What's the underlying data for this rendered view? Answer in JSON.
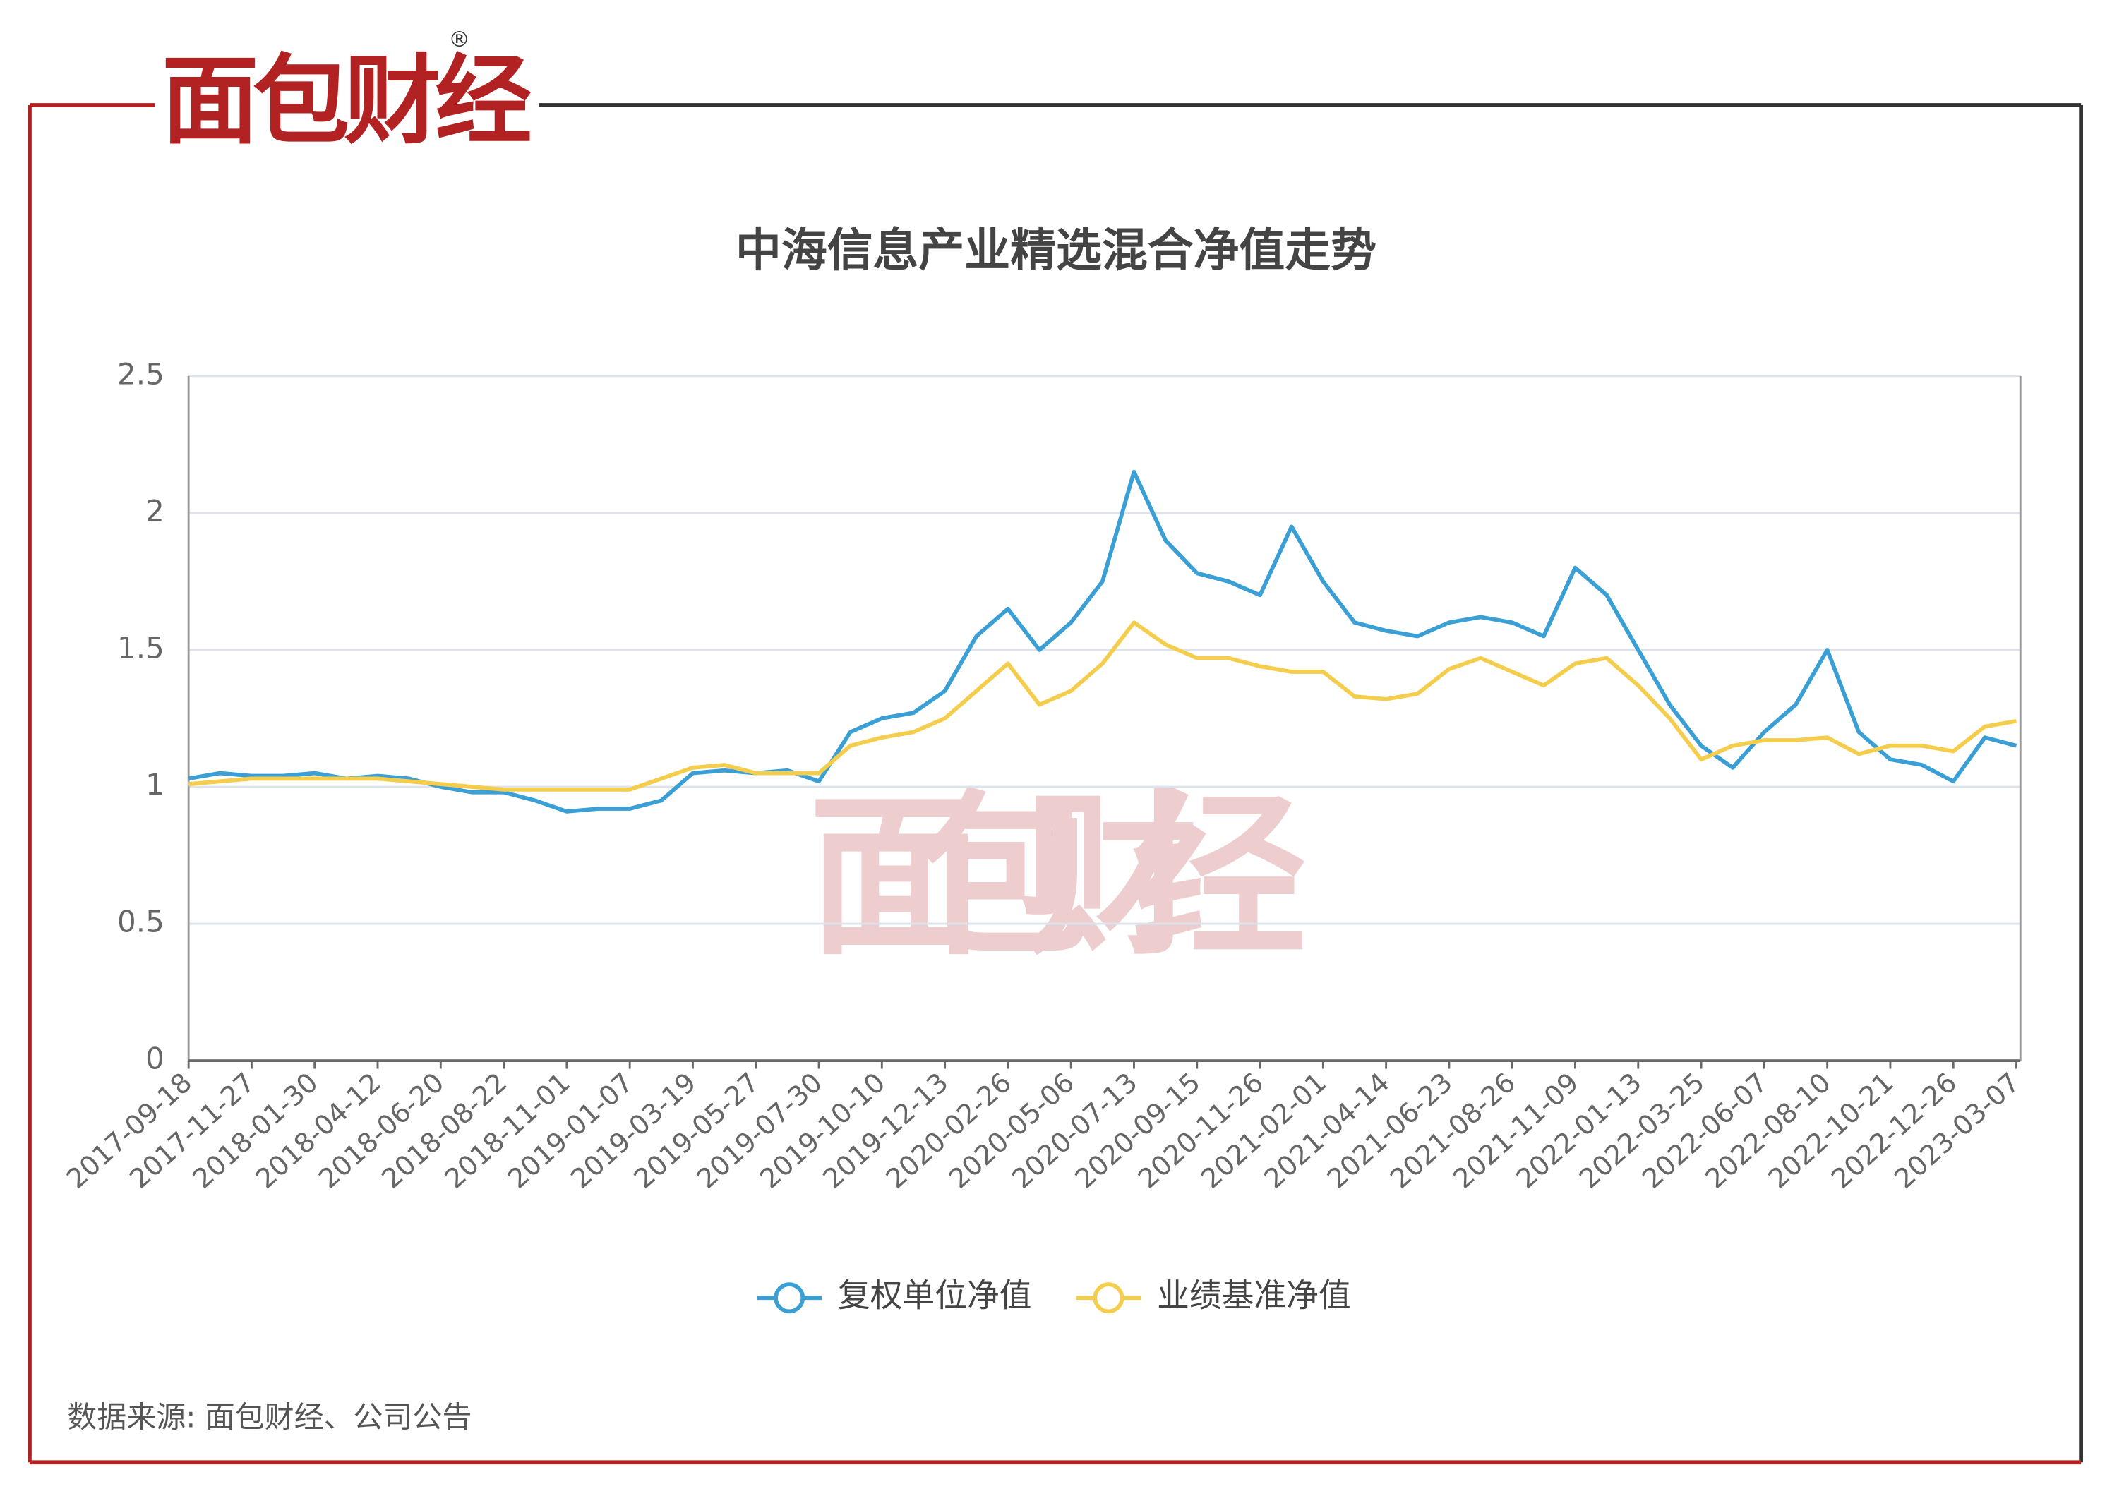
{
  "brand": {
    "name": "面包财经",
    "mark": "®"
  },
  "chart_data": {
    "type": "line",
    "title": "中海信息产业精选混合净值走势",
    "categories": [
      "2017-09-18",
      null,
      "2017-11-27",
      null,
      "2018-01-30",
      null,
      "2018-04-12",
      null,
      "2018-06-20",
      null,
      "2018-08-22",
      null,
      "2018-11-01",
      null,
      "2019-01-07",
      null,
      "2019-03-19",
      null,
      "2019-05-27",
      null,
      "2019-07-30",
      null,
      "2019-10-10",
      null,
      "2019-12-13",
      null,
      "2020-02-26",
      null,
      "2020-05-06",
      null,
      "2020-07-13",
      null,
      "2020-09-15",
      null,
      "2020-11-26",
      null,
      "2021-02-01",
      null,
      "2021-04-14",
      null,
      "2021-06-23",
      null,
      "2021-08-26",
      null,
      "2021-11-09",
      null,
      "2022-01-13",
      null,
      "2022-03-25",
      null,
      "2022-06-07",
      null,
      "2022-08-10",
      null,
      "2022-10-21",
      null,
      "2022-12-26",
      null,
      "2023-03-07"
    ],
    "series": [
      {
        "name": "复权单位净值",
        "color": "#3a9fd4",
        "values": [
          1.03,
          1.05,
          1.04,
          1.04,
          1.05,
          1.03,
          1.04,
          1.03,
          1.0,
          0.98,
          0.98,
          0.95,
          0.91,
          0.92,
          0.92,
          0.95,
          1.05,
          1.06,
          1.05,
          1.06,
          1.02,
          1.2,
          1.25,
          1.27,
          1.35,
          1.55,
          1.65,
          1.5,
          1.6,
          1.75,
          2.15,
          1.9,
          1.78,
          1.75,
          1.7,
          1.95,
          1.75,
          1.6,
          1.57,
          1.55,
          1.6,
          1.62,
          1.6,
          1.55,
          1.8,
          1.7,
          1.5,
          1.3,
          1.15,
          1.07,
          1.2,
          1.3,
          1.5,
          1.2,
          1.1,
          1.08,
          1.02,
          1.18,
          1.15
        ]
      },
      {
        "name": "业绩基准净值",
        "color": "#f5cd4c",
        "values": [
          1.01,
          1.02,
          1.03,
          1.03,
          1.03,
          1.03,
          1.03,
          1.02,
          1.01,
          1.0,
          0.99,
          0.99,
          0.99,
          0.99,
          0.99,
          1.03,
          1.07,
          1.08,
          1.05,
          1.05,
          1.05,
          1.15,
          1.18,
          1.2,
          1.25,
          1.35,
          1.45,
          1.3,
          1.35,
          1.45,
          1.6,
          1.52,
          1.47,
          1.47,
          1.44,
          1.42,
          1.42,
          1.33,
          1.32,
          1.34,
          1.43,
          1.47,
          1.42,
          1.37,
          1.45,
          1.47,
          1.37,
          1.25,
          1.1,
          1.15,
          1.17,
          1.17,
          1.18,
          1.12,
          1.15,
          1.15,
          1.13,
          1.22,
          1.24
        ]
      }
    ],
    "ylim": [
      0,
      2.5
    ],
    "yticks": [
      0,
      0.5,
      1,
      1.5,
      2,
      2.5
    ],
    "grid": true
  },
  "source": "数据来源: 面包财经、公司公告"
}
